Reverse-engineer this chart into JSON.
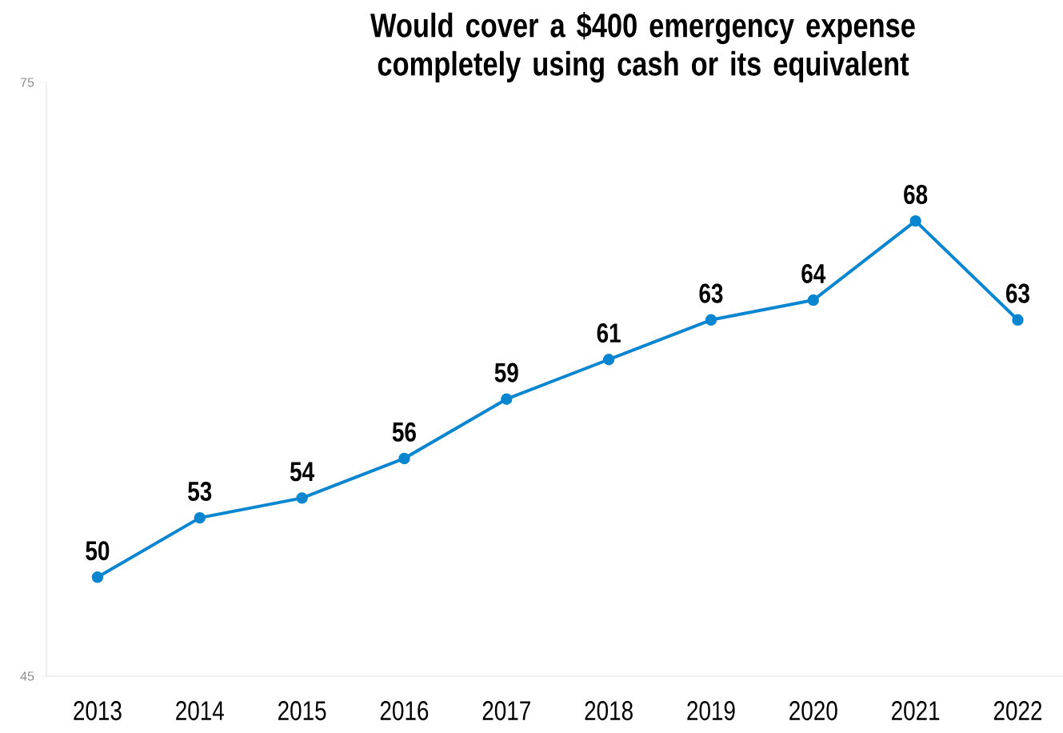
{
  "chart_data": {
    "type": "line",
    "title": "Would cover a $400 emergency expense completely using cash or its equivalent",
    "categories": [
      "2013",
      "2014",
      "2015",
      "2016",
      "2017",
      "2018",
      "2019",
      "2020",
      "2021",
      "2022"
    ],
    "values": [
      50,
      53,
      54,
      56,
      59,
      61,
      63,
      64,
      68,
      63
    ],
    "color": "#0a86d0",
    "ylim": [
      45,
      75
    ],
    "yticks": [
      45,
      75
    ],
    "data_labels": true,
    "marker": "circle",
    "line_style": "solid"
  }
}
